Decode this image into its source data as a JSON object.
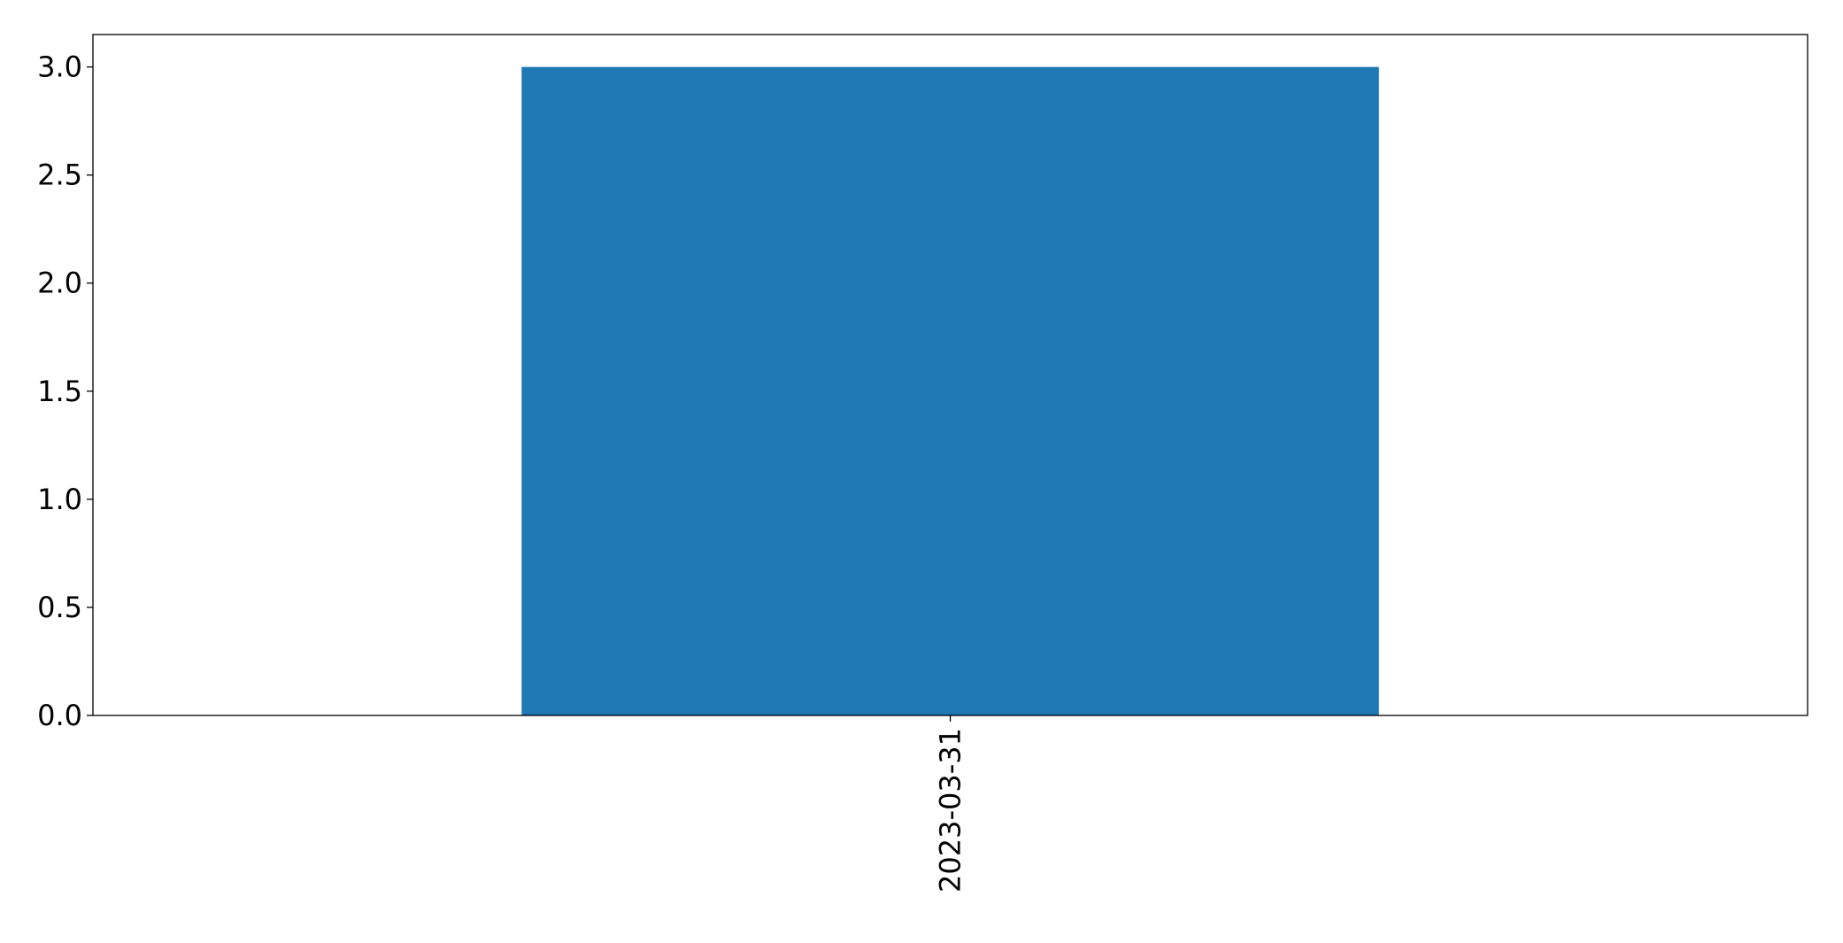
{
  "chart_data": {
    "type": "bar",
    "title": "",
    "xlabel": "",
    "ylabel": "",
    "categories": [
      "2023-03-31"
    ],
    "values": [
      3
    ],
    "ylim": [
      0,
      3.15
    ],
    "yticks": [
      "0.0",
      "0.5",
      "1.0",
      "1.5",
      "2.0",
      "2.5",
      "3.0"
    ],
    "grid": false,
    "legend": "none",
    "bar_color": "#1f77b4",
    "xtick_rotation": 90
  }
}
